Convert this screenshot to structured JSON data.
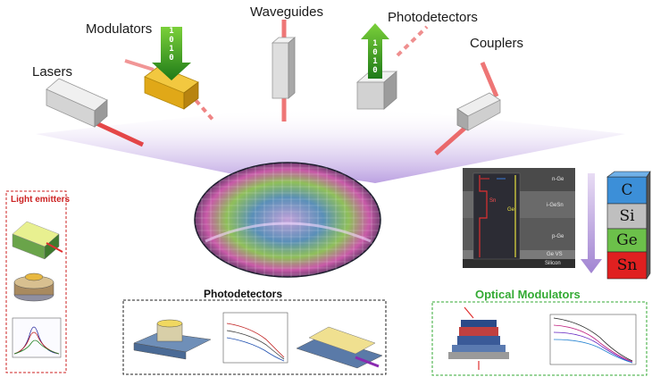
{
  "components": {
    "lasers": "Lasers",
    "modulators": "Modulators",
    "waveguides": "Waveguides",
    "photodetectors": "Photodetectors",
    "couplers": "Couplers"
  },
  "bits": {
    "down_arrow": [
      "1",
      "0",
      "1",
      "0"
    ],
    "up_arrow": [
      "1",
      "0",
      "1",
      "0"
    ]
  },
  "panels": {
    "light_emitters": "Light emitters",
    "photodetectors": "Photodetectors",
    "optical_modulators": "Optical Modulators"
  },
  "material_stack": [
    "C",
    "Si",
    "Ge",
    "Sn"
  ],
  "tem_labels": {
    "n_ge": "n-Ge",
    "i_gesn": "i-GeSn",
    "p_ge": "p-Ge",
    "ge_vs": "Ge VS",
    "silicon": "Silicon",
    "ge": "Ge",
    "sn": "Sn"
  },
  "colors": {
    "laser_beam": "#e03030",
    "modulator_gold": "#e8b520",
    "arrow_green": "#55aa22",
    "emitters_border": "#cc2222",
    "modulators_border": "#33aa33",
    "carbon_blue": "#3c8fd8",
    "silicon_gray": "#bfbfbf",
    "germanium_green": "#6cc04a",
    "tin_red": "#e02020"
  }
}
